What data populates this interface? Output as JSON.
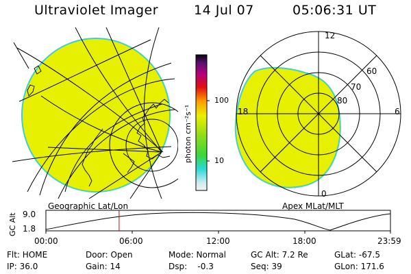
{
  "header": {
    "title": "Ultraviolet Imager",
    "date": "14 Jul 07",
    "time": "05:06:31 UT"
  },
  "colors": {
    "disk": "#e6f000",
    "limb": "#40d0c8",
    "grid": "#000000",
    "marker": "#d00000"
  },
  "geo_panel": {
    "label": "Geographic Lat/Lon"
  },
  "apex_panel": {
    "label": "Apex MLat/MLT",
    "mlt_labels": [
      "12",
      "18",
      "6",
      "0"
    ],
    "lat_labels": [
      "60",
      "70",
      "80"
    ]
  },
  "colorbar": {
    "ticks": [
      "100",
      "10"
    ],
    "unit_label": "photon cm⁻²s⁻¹"
  },
  "altitude": {
    "axis_label": "GC Alt",
    "y_ticks": [
      "9.0",
      "1.8"
    ],
    "x_ticks": [
      "00:00",
      "06:00",
      "12:00",
      "18:00",
      "23:59"
    ],
    "marker_hours": 5.1
  },
  "info": {
    "col1": [
      "Flt: HOME",
      "IP: 36.0"
    ],
    "col2": [
      "Door: Open",
      "Gain: 14"
    ],
    "col3": [
      "Mode: Normal",
      "Dsp:    -0.3"
    ],
    "col4": [
      "GC Alt: 7.2 Re",
      "Seq: 39"
    ],
    "col5": [
      "GLat: -67.5",
      "GLon: 171.6"
    ]
  }
}
